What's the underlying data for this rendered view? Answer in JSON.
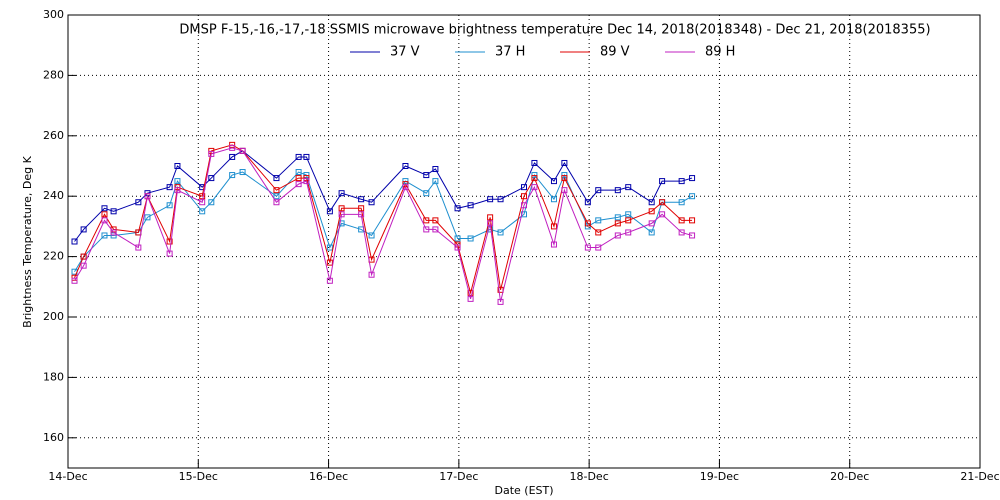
{
  "chart_data": {
    "type": "line",
    "title": "DMSP F-15,-16,-17,-18 SSMIS microwave brightness temperature Dec 14, 2018(2018348) - Dec 21, 2018(2018355)",
    "x_label": "Date (EST)",
    "y_label": "Brightness Temperature, Deg K",
    "x": [
      14.05,
      14.12,
      14.28,
      14.35,
      14.54,
      14.61,
      14.78,
      14.84,
      15.03,
      15.1,
      15.26,
      15.34,
      15.6,
      15.77,
      15.83,
      16.01,
      16.1,
      16.25,
      16.33,
      16.59,
      16.75,
      16.82,
      16.99,
      17.09,
      17.24,
      17.32,
      17.5,
      17.58,
      17.73,
      17.81,
      17.99,
      18.07,
      18.22,
      18.3,
      18.48,
      18.56,
      18.71,
      18.79
    ],
    "series": [
      {
        "name": "37 V",
        "color": "#0000aa",
        "values": [
          225,
          229,
          236,
          235,
          238,
          241,
          243,
          250,
          243,
          246,
          253,
          255,
          246,
          253,
          253,
          235,
          241,
          239,
          238,
          250,
          247,
          249,
          236,
          237,
          239,
          239,
          243,
          251,
          245,
          251,
          238,
          242,
          242,
          243,
          238,
          245,
          245,
          246
        ]
      },
      {
        "name": "37 H",
        "color": "#1e8fcf",
        "values": [
          215,
          220,
          227,
          227,
          228,
          233,
          237,
          245,
          235,
          238,
          247,
          248,
          240,
          248,
          247,
          223,
          231,
          229,
          227,
          245,
          241,
          245,
          226,
          226,
          229,
          228,
          234,
          247,
          239,
          247,
          230,
          232,
          233,
          234,
          228,
          238,
          238,
          240
        ]
      },
      {
        "name": "89 V",
        "color": "#e00000",
        "values": [
          213,
          220,
          234,
          229,
          228,
          240,
          225,
          243,
          240,
          255,
          257,
          255,
          242,
          246,
          246,
          218,
          236,
          236,
          219,
          244,
          232,
          232,
          224,
          208,
          233,
          209,
          240,
          246,
          230,
          246,
          231,
          228,
          231,
          232,
          235,
          238,
          232,
          232
        ]
      },
      {
        "name": "89 H",
        "color": "#c020c0",
        "values": [
          212,
          217,
          232,
          228,
          223,
          240,
          221,
          242,
          238,
          254,
          256,
          255,
          238,
          244,
          245,
          212,
          234,
          234,
          214,
          243,
          229,
          229,
          223,
          206,
          231,
          205,
          237,
          243,
          224,
          242,
          223,
          223,
          227,
          228,
          231,
          234,
          228,
          227
        ]
      }
    ],
    "xlim": [
      14,
      21
    ],
    "xticks": [
      {
        "value": 14,
        "label": "14-Dec"
      },
      {
        "value": 15,
        "label": "15-Dec"
      },
      {
        "value": 16,
        "label": "16-Dec"
      },
      {
        "value": 17,
        "label": "17-Dec"
      },
      {
        "value": 18,
        "label": "18-Dec"
      },
      {
        "value": 19,
        "label": "19-Dec"
      },
      {
        "value": 20,
        "label": "20-Dec"
      },
      {
        "value": 21,
        "label": "21-Dec"
      }
    ],
    "ylim": [
      150,
      300
    ],
    "yticks": [
      160,
      180,
      200,
      220,
      240,
      260,
      280,
      300
    ],
    "grid": true
  }
}
